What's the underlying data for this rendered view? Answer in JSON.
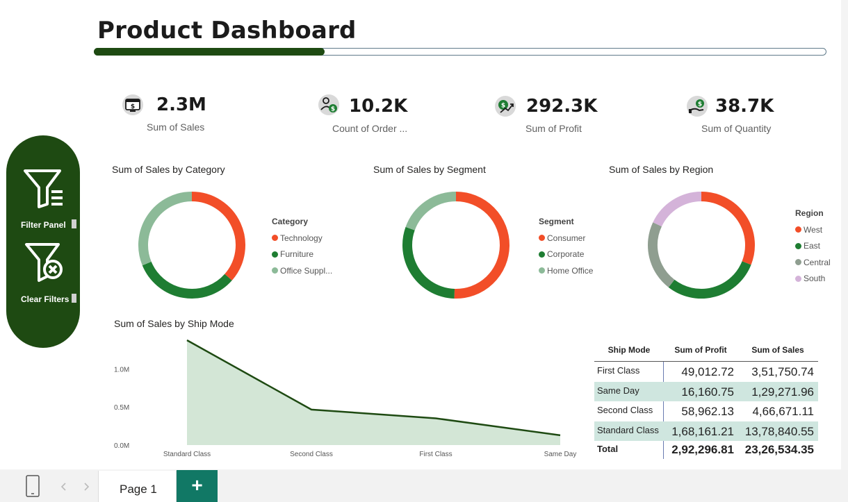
{
  "header": {
    "title": "Product Dashboard",
    "progress_fraction": 0.315
  },
  "kpis": [
    {
      "value": "2.3M",
      "label": "Sum of Sales",
      "icon": "sales-monitor-icon"
    },
    {
      "value": "10.2K",
      "label": "Count of Order ...",
      "icon": "customer-order-icon"
    },
    {
      "value": "292.3K",
      "label": "Sum of Profit",
      "icon": "profit-growth-icon"
    },
    {
      "value": "38.7K",
      "label": "Sum of Quantity",
      "icon": "hand-money-icon"
    }
  ],
  "side_panel": {
    "filter_label": "Filter Panel",
    "clear_label": "Clear Filters",
    "filter_icon": "filter-icon",
    "clear_icon": "clear-filter-icon"
  },
  "donuts": [
    {
      "title": "Sum of Sales by Category",
      "legend_title": "Category",
      "items": [
        {
          "label": "Technology",
          "value": 0.365,
          "color": "#f24e28"
        },
        {
          "label": "Furniture",
          "value": 0.323,
          "color": "#1e7d32"
        },
        {
          "label": "Office Suppl...",
          "value": 0.312,
          "color": "#8cba98"
        }
      ]
    },
    {
      "title": "Sum of Sales by Segment",
      "legend_title": "Segment",
      "items": [
        {
          "label": "Consumer",
          "value": 0.505,
          "color": "#f24e28"
        },
        {
          "label": "Corporate",
          "value": 0.3,
          "color": "#1e7d32"
        },
        {
          "label": "Home Office",
          "value": 0.195,
          "color": "#8cba98"
        }
      ]
    },
    {
      "title": "Sum of Sales by Region",
      "legend_title": "Region",
      "items": [
        {
          "label": "West",
          "value": 0.31,
          "color": "#f24e28"
        },
        {
          "label": "East",
          "value": 0.295,
          "color": "#1e7d32"
        },
        {
          "label": "Central",
          "value": 0.215,
          "color": "#8f9e90"
        },
        {
          "label": "South",
          "value": 0.18,
          "color": "#d4b3d9"
        }
      ]
    }
  ],
  "chart_data": {
    "type": "area",
    "title": "Sum of Sales by Ship Mode",
    "categories": [
      "Standard Class",
      "Second Class",
      "First Class",
      "Same Day"
    ],
    "values": [
      1378840.55,
      466671.11,
      351750.74,
      129271.96
    ],
    "y_ticks": [
      "1.0M",
      "0.5M",
      "0.0M"
    ],
    "y_tick_values": [
      1000000,
      500000,
      0
    ],
    "ylim": [
      0,
      1378840.55
    ],
    "line_color": "#1e4a12",
    "fill_color": "#d3e6d6"
  },
  "table": {
    "headers": [
      "Ship Mode",
      "Sum of Profit",
      "Sum of Sales"
    ],
    "rows": [
      {
        "mode": "First Class",
        "profit": "49,012.72",
        "sales": "3,51,750.74"
      },
      {
        "mode": "Same Day",
        "profit": "16,160.75",
        "sales": "1,29,271.96"
      },
      {
        "mode": "Second Class",
        "profit": "58,962.13",
        "sales": "4,66,671.11"
      },
      {
        "mode": "Standard Class",
        "profit": "1,68,161.21",
        "sales": "13,78,840.55"
      }
    ],
    "total": {
      "label": "Total",
      "profit": "2,92,296.81",
      "sales": "23,26,534.35"
    },
    "band_color": "#cfe6df"
  },
  "footer": {
    "page_label": "Page 1",
    "add_label": "+",
    "device_icon": "mobile-layout-icon",
    "prev_icon": "chevron-left-icon",
    "next_icon": "chevron-right-icon"
  }
}
